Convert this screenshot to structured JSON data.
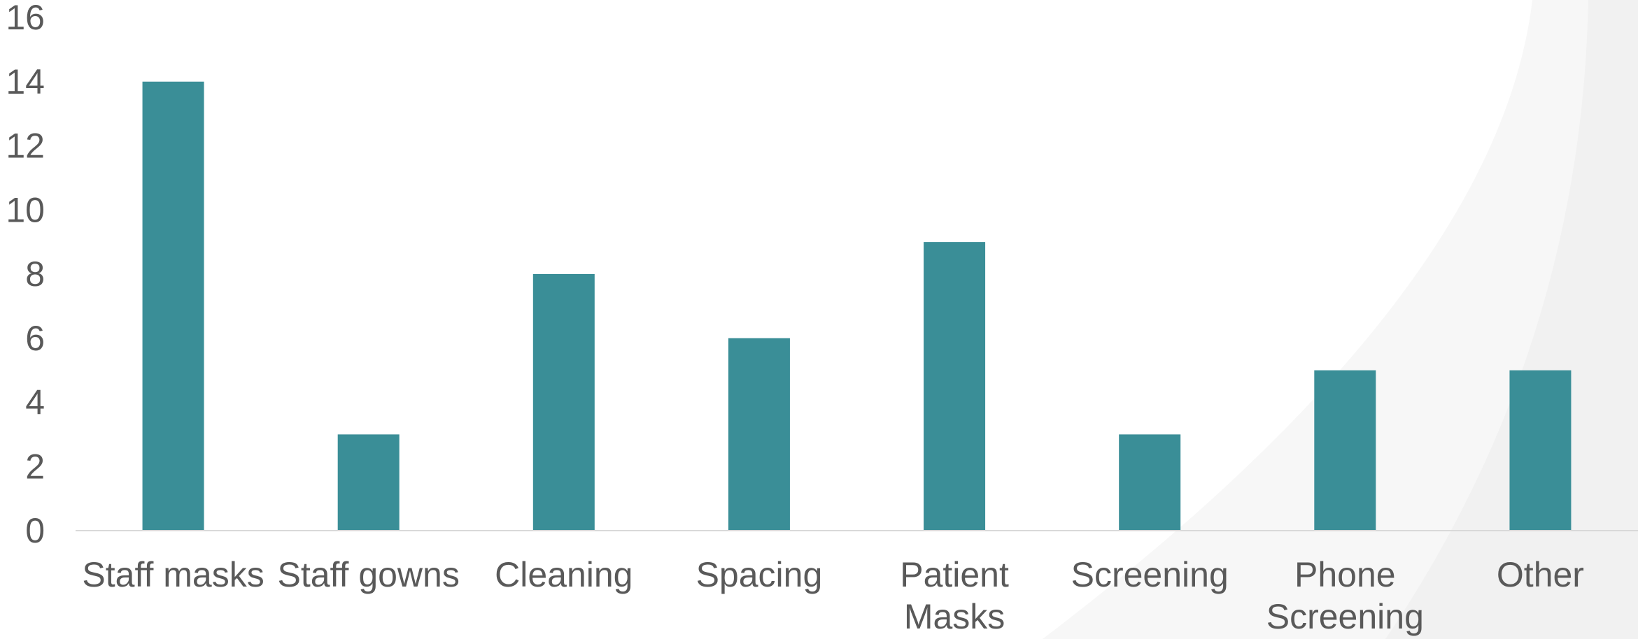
{
  "chart_data": {
    "type": "bar",
    "categories": [
      [
        "Staff masks"
      ],
      [
        "Staff gowns"
      ],
      [
        "Cleaning"
      ],
      [
        "Spacing"
      ],
      [
        "Patient",
        "Masks"
      ],
      [
        "Screening"
      ],
      [
        "Phone",
        "Screening"
      ],
      [
        "Other"
      ]
    ],
    "values": [
      14,
      3,
      8,
      6,
      9,
      3,
      5,
      5
    ],
    "ylim": [
      0,
      16
    ],
    "yticks": [
      0,
      2,
      4,
      6,
      8,
      10,
      12,
      14,
      16
    ],
    "title": "",
    "xlabel": "",
    "ylabel": "",
    "grid": false,
    "legend": "none",
    "colors": {
      "bar": "#3A8E97",
      "axis": "#D9D9D9",
      "text": "#595959",
      "background_arc": "#F2F2F2"
    }
  }
}
